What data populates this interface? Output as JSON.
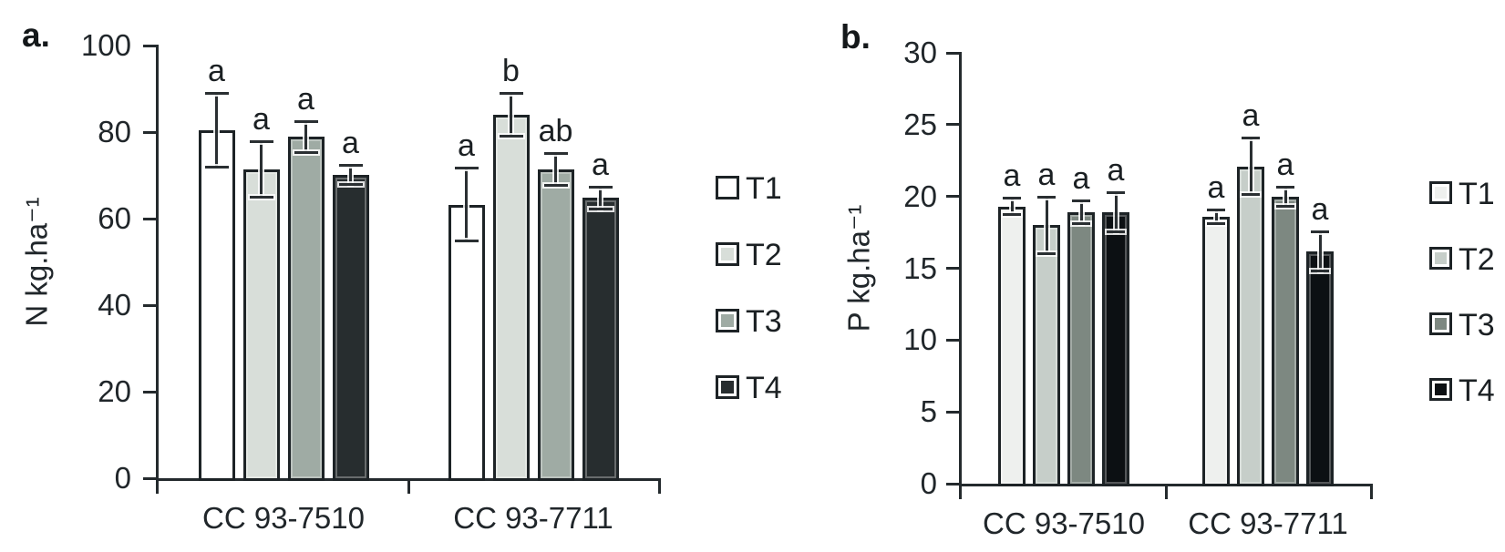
{
  "figure_title": "",
  "colors": {
    "background": "#ffffff",
    "ink": "#20262a",
    "axis": "#242a2d",
    "bar_border": "#1d2326",
    "error_bar": "#2a2f32"
  },
  "chart_data": [
    {
      "id": "a",
      "type": "bar",
      "panel_label": "a.",
      "ylabel": "N kg.ha⁻¹",
      "xlabel": "",
      "ylim": [
        0,
        100
      ],
      "yticks": [
        0,
        20,
        40,
        60,
        80,
        100
      ],
      "categories": [
        "CC 93-7510",
        "CC 93-7711"
      ],
      "grid": false,
      "error_bars": true,
      "legend_position": "right",
      "series": [
        {
          "name": "T1",
          "fill": "#ffffff",
          "values": [
            80.4,
            63.2
          ],
          "errors": [
            8.7,
            8.5
          ],
          "letters": [
            "a",
            "a"
          ]
        },
        {
          "name": "T2",
          "fill": "#d8ded9",
          "values": [
            71.4,
            84.0
          ],
          "errors": [
            6.6,
            5.0
          ],
          "letters": [
            "a",
            "b"
          ]
        },
        {
          "name": "T3",
          "fill": "#9faba4",
          "values": [
            78.9,
            71.4
          ],
          "errors": [
            3.7,
            3.8
          ],
          "letters": [
            "a",
            "ab"
          ]
        },
        {
          "name": "T4",
          "fill": "#272d2f",
          "values": [
            70.1,
            64.8
          ],
          "errors": [
            2.4,
            2.6
          ],
          "letters": [
            "a",
            "a"
          ]
        }
      ]
    },
    {
      "id": "b",
      "type": "bar",
      "panel_label": "b.",
      "ylabel": "P kg.ha⁻¹",
      "xlabel": "",
      "ylim": [
        0,
        30
      ],
      "yticks": [
        0,
        5,
        10,
        15,
        20,
        25,
        30
      ],
      "categories": [
        "CC 93-7510",
        "CC 93-7711"
      ],
      "grid": false,
      "error_bars": true,
      "legend_position": "right",
      "series": [
        {
          "name": "T1",
          "fill": "#eef0ee",
          "values": [
            19.3,
            18.6
          ],
          "errors": [
            0.6,
            0.5
          ],
          "letters": [
            "a",
            "a"
          ]
        },
        {
          "name": "T2",
          "fill": "#c6cec9",
          "values": [
            18.0,
            22.1
          ],
          "errors": [
            2.0,
            2.0
          ],
          "letters": [
            "a",
            "a"
          ]
        },
        {
          "name": "T3",
          "fill": "#7d8881",
          "values": [
            18.9,
            20.0
          ],
          "errors": [
            0.8,
            0.7
          ],
          "letters": [
            "a",
            "a"
          ]
        },
        {
          "name": "T4",
          "fill": "#0c1013",
          "values": [
            18.9,
            16.2
          ],
          "errors": [
            1.4,
            1.4
          ],
          "letters": [
            "a",
            "a"
          ]
        }
      ]
    }
  ]
}
